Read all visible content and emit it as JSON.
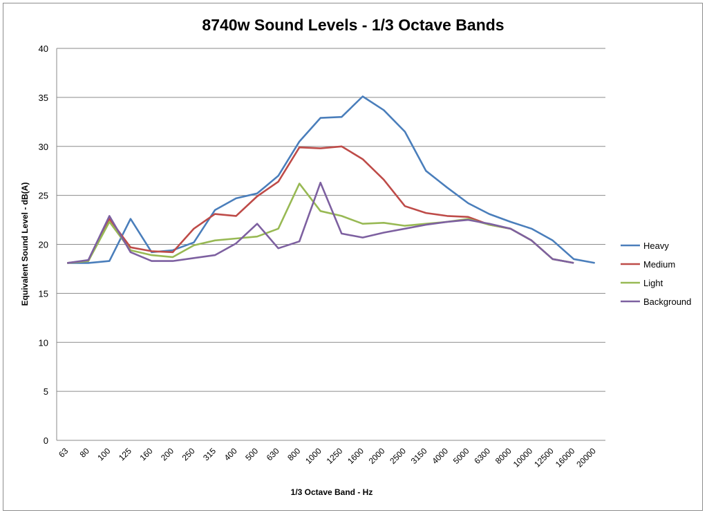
{
  "chart_data": {
    "type": "line",
    "title": "8740w Sound Levels - 1/3 Octave Bands",
    "xlabel": "1/3 Octave Band - Hz",
    "ylabel": "Equivalent Sound Level - dB(A)",
    "ylim": [
      0,
      40
    ],
    "yticks": [
      0,
      5,
      10,
      15,
      20,
      25,
      30,
      35,
      40
    ],
    "grid": true,
    "legend_position": "right",
    "categories": [
      "63",
      "80",
      "100",
      "125",
      "160",
      "200",
      "250",
      "315",
      "400",
      "500",
      "630",
      "800",
      "1000",
      "1250",
      "1600",
      "2000",
      "2500",
      "3150",
      "4000",
      "5000",
      "6300",
      "8000",
      "10000",
      "12500",
      "16000",
      "20000"
    ],
    "series": [
      {
        "name": "Heavy",
        "color": "#4a7ebb",
        "values": [
          18.1,
          18.1,
          18.3,
          22.6,
          19.2,
          19.4,
          20.2,
          23.5,
          24.7,
          25.2,
          27.0,
          30.5,
          32.9,
          33.0,
          35.1,
          33.7,
          31.5,
          27.5,
          25.8,
          24.2,
          23.1,
          22.3,
          21.6,
          20.4,
          18.5,
          18.1
        ]
      },
      {
        "name": "Medium",
        "color": "#be4b48",
        "values": [
          18.1,
          18.3,
          22.6,
          19.7,
          19.3,
          19.2,
          21.6,
          23.1,
          22.9,
          24.9,
          26.4,
          29.9,
          29.8,
          30.0,
          28.7,
          26.6,
          23.9,
          23.2,
          22.9,
          22.8,
          22.0,
          21.6,
          20.4,
          18.5,
          18.1,
          null
        ]
      },
      {
        "name": "Light",
        "color": "#98b954",
        "values": [
          18.1,
          18.3,
          22.3,
          19.4,
          18.9,
          18.7,
          19.9,
          20.4,
          20.6,
          20.8,
          21.6,
          26.2,
          23.4,
          22.9,
          22.1,
          22.2,
          21.9,
          22.1,
          22.3,
          22.6,
          22.0,
          21.6,
          20.4,
          18.5,
          18.1,
          null
        ]
      },
      {
        "name": "Background",
        "color": "#7d60a0",
        "values": [
          18.1,
          18.4,
          22.9,
          19.2,
          18.3,
          18.3,
          18.6,
          18.9,
          20.1,
          22.1,
          19.6,
          20.3,
          26.3,
          21.1,
          20.7,
          21.2,
          21.6,
          22.0,
          22.3,
          22.5,
          22.1,
          21.6,
          20.4,
          18.5,
          18.1,
          null
        ]
      }
    ]
  }
}
